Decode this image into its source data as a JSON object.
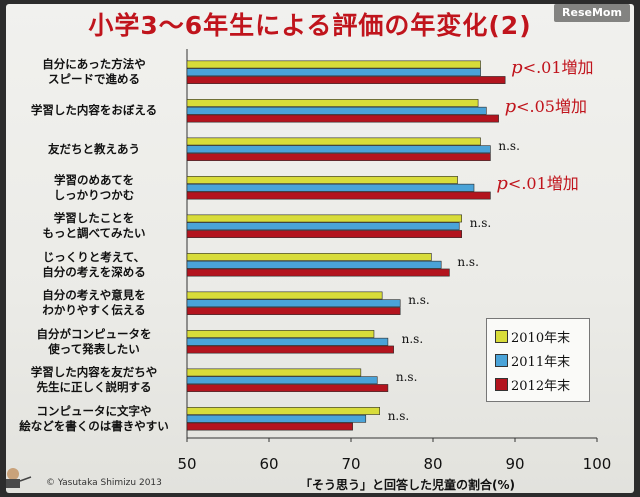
{
  "title": "小学3～6年生による評価の年変化(2)",
  "logo": "ReseMom",
  "copyright": "© Yasutaka Shimizu 2013",
  "colors": {
    "series2010": "#d8dc3a",
    "series2011": "#4aa3d8",
    "series2012": "#b3141e",
    "accent": "#c0141c"
  },
  "chart_data": {
    "type": "bar",
    "orientation": "horizontal",
    "title": "小学3～6年生による評価の年変化(2)",
    "xlabel": "「そう思う」と回答した児童の割合(%)",
    "xlim": [
      50,
      100
    ],
    "xticks": [
      "50",
      "60",
      "70",
      "80",
      "90",
      "100"
    ],
    "categories": [
      "自分にあった方法や\nスピードで進める",
      "学習した内容をおぼえる",
      "友だちと教えあう",
      "学習のめあてを\nしっかりつかむ",
      "学習したことを\nもっと調べてみたい",
      "じっくりと考えて、\n自分の考えを深める",
      "自分の考えや意見を\nわかりやすく伝える",
      "自分がコンピュータを\n使って発表したい",
      "学習した内容を友だちや\n先生に正しく説明する",
      "コンピュータに文字や\n絵などを書くのは書きやすい"
    ],
    "series": [
      {
        "name": "2010年末",
        "values": [
          85.8,
          85.5,
          85.8,
          83.0,
          83.5,
          79.8,
          73.8,
          72.8,
          71.2,
          73.5
        ]
      },
      {
        "name": "2011年末",
        "values": [
          85.8,
          86.5,
          87.0,
          85.0,
          83.2,
          81.0,
          76.0,
          74.5,
          73.2,
          71.8
        ]
      },
      {
        "name": "2012年末",
        "values": [
          88.8,
          88.0,
          87.0,
          87.0,
          83.5,
          82.0,
          76.0,
          75.2,
          74.5,
          70.2
        ]
      }
    ],
    "annotations": [
      {
        "p": "p",
        "text": "<.01増加"
      },
      {
        "p": "p",
        "text": "<.05増加"
      },
      {
        "text": "n.s."
      },
      {
        "p": "p",
        "text": "<.01増加"
      },
      {
        "text": "n.s."
      },
      {
        "text": "n.s."
      },
      {
        "text": "n.s."
      },
      {
        "text": "n.s."
      },
      {
        "text": "n.s."
      },
      {
        "text": "n.s."
      }
    ],
    "legend_position": "bottom-right"
  }
}
